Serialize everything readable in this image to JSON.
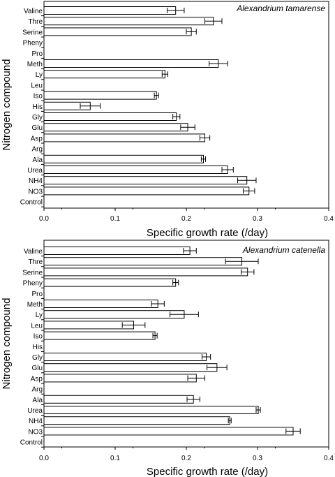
{
  "chart_data": [
    {
      "type": "bar",
      "orientation": "horizontal",
      "title": "Alexandrium tamarense",
      "xlabel": "Specific growth rate (/day)",
      "ylabel": "Nitrogen compound",
      "xlim": [
        0,
        0.4
      ],
      "xticks": [
        "0.0",
        "0.1",
        "0.2",
        "0.3",
        "0.4"
      ],
      "grid": false,
      "categories": [
        "Valine",
        "Thre",
        "Serine",
        "Pheny",
        "Pro",
        "Meth",
        "Ly",
        "Leu",
        "Iso",
        "His",
        "Gly",
        "Glu",
        "Asp",
        "Arg",
        "Ala",
        "Urea",
        "NH4",
        "NO3",
        "Control"
      ],
      "values": [
        0.185,
        0.238,
        0.207,
        0,
        0,
        0.245,
        0.17,
        0,
        0.158,
        0.065,
        0.186,
        0.202,
        0.226,
        0,
        0.224,
        0.258,
        0.285,
        0.288,
        0
      ],
      "errors": [
        0.012,
        0.012,
        0.007,
        0,
        0,
        0.013,
        0.004,
        0,
        0.003,
        0.014,
        0.005,
        0.01,
        0.007,
        0,
        0.003,
        0.008,
        0.013,
        0.008,
        0
      ]
    },
    {
      "type": "bar",
      "orientation": "horizontal",
      "title": "Alexandrium catenella",
      "xlabel": "Specific growth rate (/day)",
      "ylabel": "Nitrogen compound",
      "xlim": [
        0,
        0.4
      ],
      "xticks": [
        "0.0",
        "0.1",
        "0.2",
        "0.3",
        "0.4"
      ],
      "grid": false,
      "categories": [
        "Valine",
        "Thre",
        "Serine",
        "Pheny",
        "Pro",
        "Meth",
        "Ly",
        "Leu",
        "Iso",
        "His",
        "Gly",
        "Glu",
        "Asp",
        "Arg",
        "Ala",
        "Urea",
        "NH4",
        "NO3",
        "Control"
      ],
      "values": [
        0.205,
        0.278,
        0.286,
        0.185,
        0,
        0.16,
        0.197,
        0.126,
        0.156,
        0,
        0.228,
        0.243,
        0.214,
        0,
        0.21,
        0.301,
        0.261,
        0.35,
        0
      ],
      "errors": [
        0.009,
        0.023,
        0.009,
        0.004,
        0,
        0.009,
        0.02,
        0.016,
        0.003,
        0,
        0.006,
        0.014,
        0.012,
        0,
        0.009,
        0.003,
        0.002,
        0.01,
        0
      ]
    }
  ]
}
